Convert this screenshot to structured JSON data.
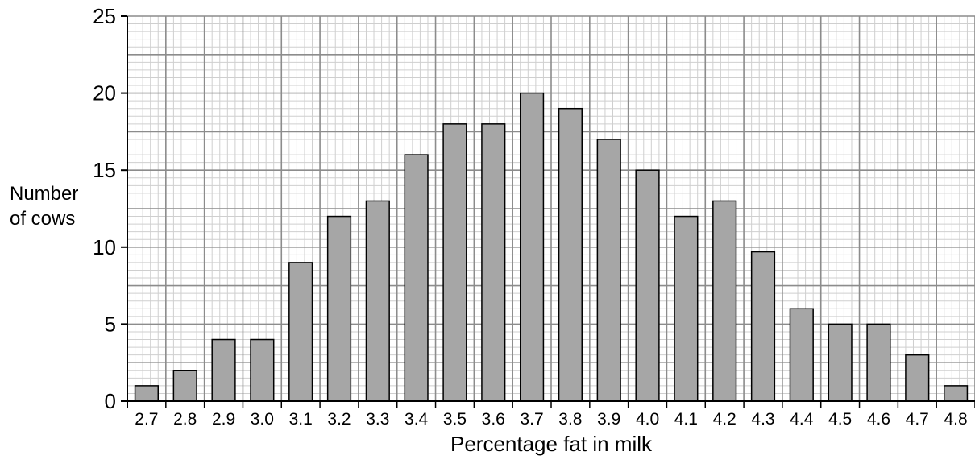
{
  "chart_data": {
    "type": "bar",
    "title": "",
    "xlabel": "Percentage fat in milk",
    "ylabel_lines": [
      "Number",
      "of cows"
    ],
    "categories": [
      "2.7",
      "2.8",
      "2.9",
      "3.0",
      "3.1",
      "3.2",
      "3.3",
      "3.4",
      "3.5",
      "3.6",
      "3.7",
      "3.8",
      "3.9",
      "4.0",
      "4.1",
      "4.2",
      "4.3",
      "4.4",
      "4.5",
      "4.6",
      "4.7",
      "4.8"
    ],
    "values": [
      1,
      2,
      4,
      4,
      9,
      12,
      13,
      16,
      18,
      18,
      20,
      19,
      17,
      15,
      12,
      13,
      9.7,
      6,
      5,
      5,
      3,
      1
    ],
    "ylim": [
      0,
      25
    ],
    "yticks": [
      0,
      5,
      10,
      15,
      20,
      25
    ],
    "grid": true,
    "colors": {
      "bar": "#a6a6a6",
      "major_grid": "#8c8c8c",
      "minor_grid": "#cfcfcf",
      "axis": "#000000"
    }
  }
}
